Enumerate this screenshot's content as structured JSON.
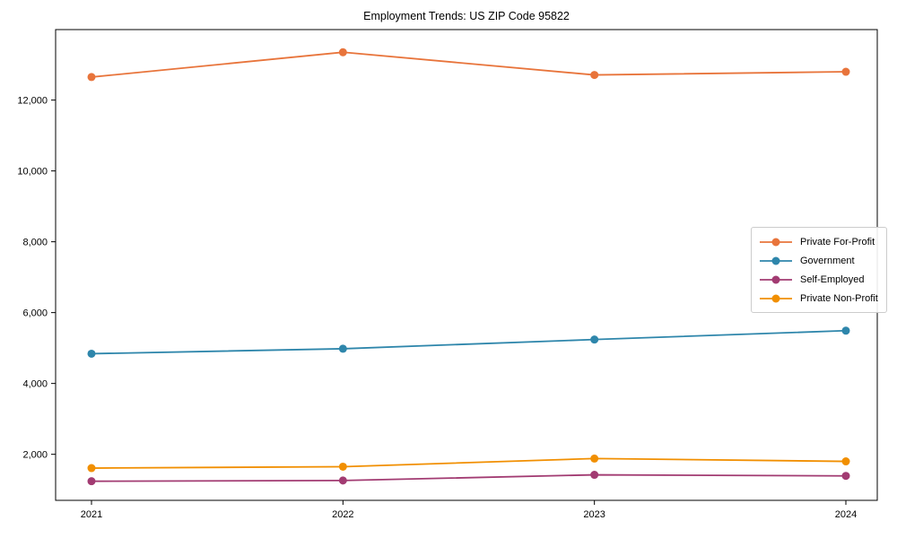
{
  "figure": {
    "title": "Employment Trends: US ZIP Code 95822"
  },
  "chart_data": {
    "type": "line",
    "title": "Employment Trends: US ZIP Code 95822",
    "xlabel": "",
    "ylabel": "",
    "categories": [
      "2021",
      "2022",
      "2023",
      "2024"
    ],
    "series": [
      {
        "name": "Private For-Profit",
        "color": "#E8743B",
        "values": [
          12650,
          13350,
          12710,
          12800
        ]
      },
      {
        "name": "Government",
        "color": "#2E86AB",
        "values": [
          4840,
          4980,
          5240,
          5490
        ]
      },
      {
        "name": "Self-Employed",
        "color": "#A23B72",
        "values": [
          1240,
          1260,
          1420,
          1390
        ]
      },
      {
        "name": "Private Non-Profit",
        "color": "#F18F01",
        "values": [
          1610,
          1650,
          1880,
          1800
        ]
      }
    ],
    "ylim": [
      700,
      13990
    ],
    "yticks": [
      2000,
      4000,
      6000,
      8000,
      10000,
      12000
    ],
    "grid": false,
    "marker": "circle",
    "legend_position": "center-right",
    "axis_color": "#000000",
    "tick_label_color": "#000000"
  }
}
